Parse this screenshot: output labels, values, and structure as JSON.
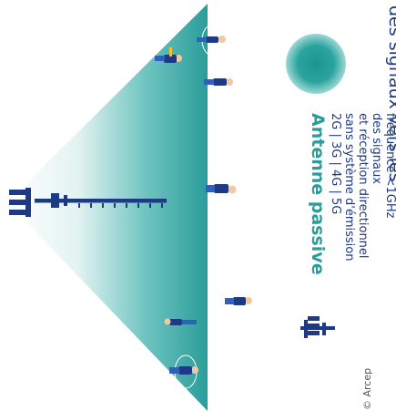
{
  "header_partial": "des signaux vers les",
  "legend": {
    "title": "Antenne passive",
    "lines": [
      "2G | 3G | 4G | 5G",
      "sans système d'émission",
      "et réception directionnel",
      "des signaux",
      "fréquence <1GHz"
    ]
  },
  "copyright": "© Arcep",
  "colors": {
    "brand_blue": "#1f3a84",
    "teal": "#2a9d9a",
    "teal_light": "#cfeae8",
    "skin": "#f0c9a0"
  }
}
